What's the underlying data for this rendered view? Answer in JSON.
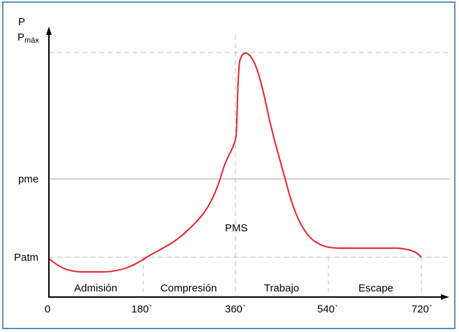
{
  "diagram": {
    "y_axis": {
      "label": "P",
      "max_label": "P",
      "max_label_subscript": "máx",
      "mean_label": "pme",
      "atm_label": "Patm"
    },
    "x_axis": {
      "ticks": [
        "0",
        "180`",
        "360`",
        "540`",
        "720`"
      ]
    },
    "phases": [
      "Admisión",
      "Compresión",
      "Trabajo",
      "Escape"
    ],
    "center_label": "PMS",
    "colors": {
      "curve": "#e8222a",
      "border": "#5b93b8",
      "dashed": "#c8c8c8",
      "pme_line": "#b0b0b0"
    }
  }
}
